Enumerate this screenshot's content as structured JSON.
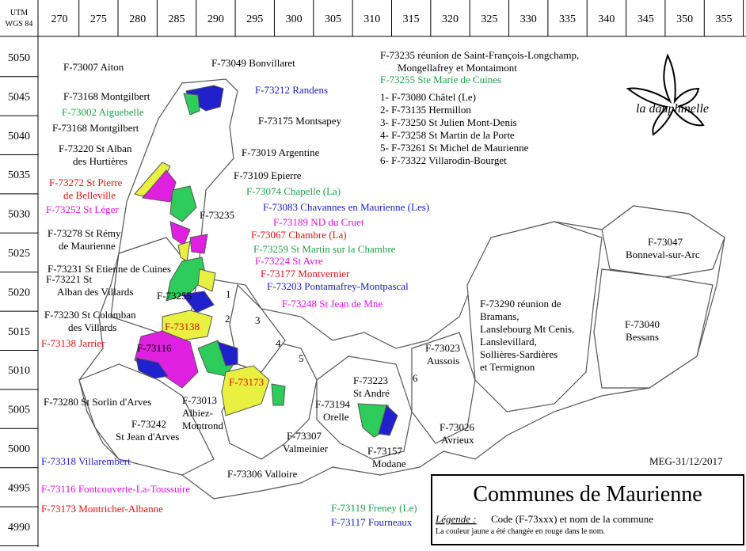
{
  "header": {
    "utm": "UTM",
    "datum": "WGS 84"
  },
  "x_ticks": [
    270,
    275,
    280,
    285,
    290,
    295,
    300,
    305,
    310,
    315,
    320,
    325,
    330,
    335,
    340,
    345,
    350,
    355
  ],
  "y_ticks": [
    5050,
    5045,
    5040,
    5035,
    5030,
    5025,
    5020,
    5015,
    5010,
    5005,
    5000,
    4995,
    4990
  ],
  "logo": "la dauphinelle",
  "labels": [
    {
      "lines": [
        "F-73007 Aiton"
      ],
      "color": "#000000"
    },
    {
      "lines": [
        "F-73049 Bonvillaret"
      ],
      "color": "#000000"
    },
    {
      "lines": [
        "F-73212 Randens"
      ],
      "color": "#1a1acc"
    },
    {
      "lines": [
        "F-73168 Montgilbert"
      ],
      "color": "#000000"
    },
    {
      "lines": [
        "F-73002 Aiguebelle"
      ],
      "color": "#1aa34a"
    },
    {
      "lines": [
        "F-73175 Montsapey"
      ],
      "color": "#000000"
    },
    {
      "lines": [
        "F-73168 Montgilbert"
      ],
      "color": "#000000"
    },
    {
      "lines": [
        "F-73220 St Alban",
        "des Hurtières"
      ],
      "color": "#000000"
    },
    {
      "lines": [
        "F-73019 Argentine"
      ],
      "color": "#000000"
    },
    {
      "lines": [
        "F-73109 Epierre"
      ],
      "color": "#000000"
    },
    {
      "lines": [
        "F-73272 St Pierre",
        "de Belleville"
      ],
      "color": "#e01010"
    },
    {
      "lines": [
        "F-73074 Chapelle (La)"
      ],
      "color": "#1aa34a"
    },
    {
      "lines": [
        "F-73252 St Léger"
      ],
      "color": "#e010e0"
    },
    {
      "lines": [
        "F-73235"
      ],
      "color": "#000000"
    },
    {
      "lines": [
        "F-73083 Chavannes en Maurienne (Les)"
      ],
      "color": "#1a1acc"
    },
    {
      "lines": [
        "F-73189 ND du Cruet"
      ],
      "color": "#e010e0"
    },
    {
      "lines": [
        "F-73278 St Rémy",
        "de Maurienne"
      ],
      "color": "#000000"
    },
    {
      "lines": [
        "F-73067 Chambre (La)"
      ],
      "color": "#e01010"
    },
    {
      "lines": [
        "F-73259 St Martin sur la Chambre"
      ],
      "color": "#1aa34a"
    },
    {
      "lines": [
        "F-73224 St Avre"
      ],
      "color": "#e010e0"
    },
    {
      "lines": [
        "F-73231 St Etienne de Cuines"
      ],
      "color": "#000000"
    },
    {
      "lines": [
        "F-73221 St",
        "Alban des Villards"
      ],
      "color": "#000000"
    },
    {
      "lines": [
        "F-73177 Montvernier"
      ],
      "color": "#e01010"
    },
    {
      "lines": [
        "F-73203 Pontamafrey-Montpascal"
      ],
      "color": "#1a1acc"
    },
    {
      "lines": [
        "F-73255"
      ],
      "color": "#000000"
    },
    {
      "lines": [
        "1"
      ],
      "color": "#000000"
    },
    {
      "lines": [
        "F-73248 St Jean de Mne"
      ],
      "color": "#e010e0"
    },
    {
      "lines": [
        "F-73230 St Colomban",
        "des Villards"
      ],
      "color": "#000000"
    },
    {
      "lines": [
        "2"
      ],
      "color": "#000000"
    },
    {
      "lines": [
        "3"
      ],
      "color": "#000000"
    },
    {
      "lines": [
        "F-73138"
      ],
      "color": "#e01010"
    },
    {
      "lines": [
        "F-73138 Jarrier"
      ],
      "color": "#e01010"
    },
    {
      "lines": [
        "4"
      ],
      "color": "#000000"
    },
    {
      "lines": [
        "5"
      ],
      "color": "#000000"
    },
    {
      "lines": [
        "F-73116"
      ],
      "color": "#000000"
    },
    {
      "lines": [
        "F-73173"
      ],
      "color": "#e01010"
    },
    {
      "lines": [
        "6"
      ],
      "color": "#000000"
    },
    {
      "lines": [
        "F-73280 St Sorlin d'Arves"
      ],
      "color": "#000000"
    },
    {
      "lines": [
        "F-73013",
        "Albiez-",
        "Montrond"
      ],
      "color": "#000000"
    },
    {
      "lines": [
        "F-73242",
        "St Jean d'Arves"
      ],
      "color": "#000000"
    },
    {
      "lines": [
        "F-73194",
        "Orelle"
      ],
      "color": "#000000"
    },
    {
      "lines": [
        "F-73223",
        "St André"
      ],
      "color": "#000000"
    },
    {
      "lines": [
        "F-73307",
        "Valmeinier"
      ],
      "color": "#000000"
    },
    {
      "lines": [
        "F-73157",
        "Modane"
      ],
      "color": "#000000"
    },
    {
      "lines": [
        "F-73026",
        "Avrieux"
      ],
      "color": "#000000"
    },
    {
      "lines": [
        "F-73023",
        "Aussois"
      ],
      "color": "#000000"
    },
    {
      "lines": [
        "F-73290 réunion de",
        "Bramans,",
        "Lanslebourg Mt Cenis,",
        "Lanslevillard,",
        "Sollières-Sardières",
        "et Termignon"
      ],
      "color": "#000000"
    },
    {
      "lines": [
        "F-73047",
        "Bonneval-sur-Arc"
      ],
      "color": "#000000"
    },
    {
      "lines": [
        "F-73040",
        "Bessans"
      ],
      "color": "#000000"
    },
    {
      "lines": [
        "F-73306 Valloire"
      ],
      "color": "#000000"
    },
    {
      "lines": [
        "F-73318 Villarembert"
      ],
      "color": "#1a1acc"
    },
    {
      "lines": [
        "F-73116 Fontcouverte-La-Toussuire"
      ],
      "color": "#e010e0"
    },
    {
      "lines": [
        "F-73173 Montricher-Albanne"
      ],
      "color": "#e01010"
    },
    {
      "lines": [
        "F-73119 Freney (Le)"
      ],
      "color": "#1aa34a"
    },
    {
      "lines": [
        "F-73117 Fourneaux"
      ],
      "color": "#1a1acc"
    },
    {
      "lines": [
        "MEG-31/12/2017"
      ],
      "color": "#000000"
    },
    {
      "lines": [
        "F-73235 réunion de Saint-François-Longchamp,",
        "Mongellafrey et Montaimont"
      ],
      "color": "#000000"
    },
    {
      "lines": [
        "F-73255 Ste Marie de Cuines"
      ],
      "color": "#1aa34a"
    },
    {
      "lines": [
        "1- F-73080 Châtel (Le)"
      ],
      "color": "#000000"
    },
    {
      "lines": [
        "2- F-73135 Hermillon"
      ],
      "color": "#000000"
    },
    {
      "lines": [
        "3- F-73250 St Julien Mont-Denis"
      ],
      "color": "#000000"
    },
    {
      "lines": [
        "4- F-73258 St Martin de la Porte"
      ],
      "color": "#000000"
    },
    {
      "lines": [
        "5- F-73261 St Michel de Maurienne"
      ],
      "color": "#000000"
    },
    {
      "lines": [
        "6- F-73322 Villarodin-Bourget"
      ],
      "color": "#000000"
    }
  ],
  "legend": {
    "title": "Communes de Maurienne",
    "key": "Légende :",
    "text": "Code (F-73xxx) et nom de la commune",
    "note": "La couleur jaune a été changée en rouge dans le nom."
  }
}
